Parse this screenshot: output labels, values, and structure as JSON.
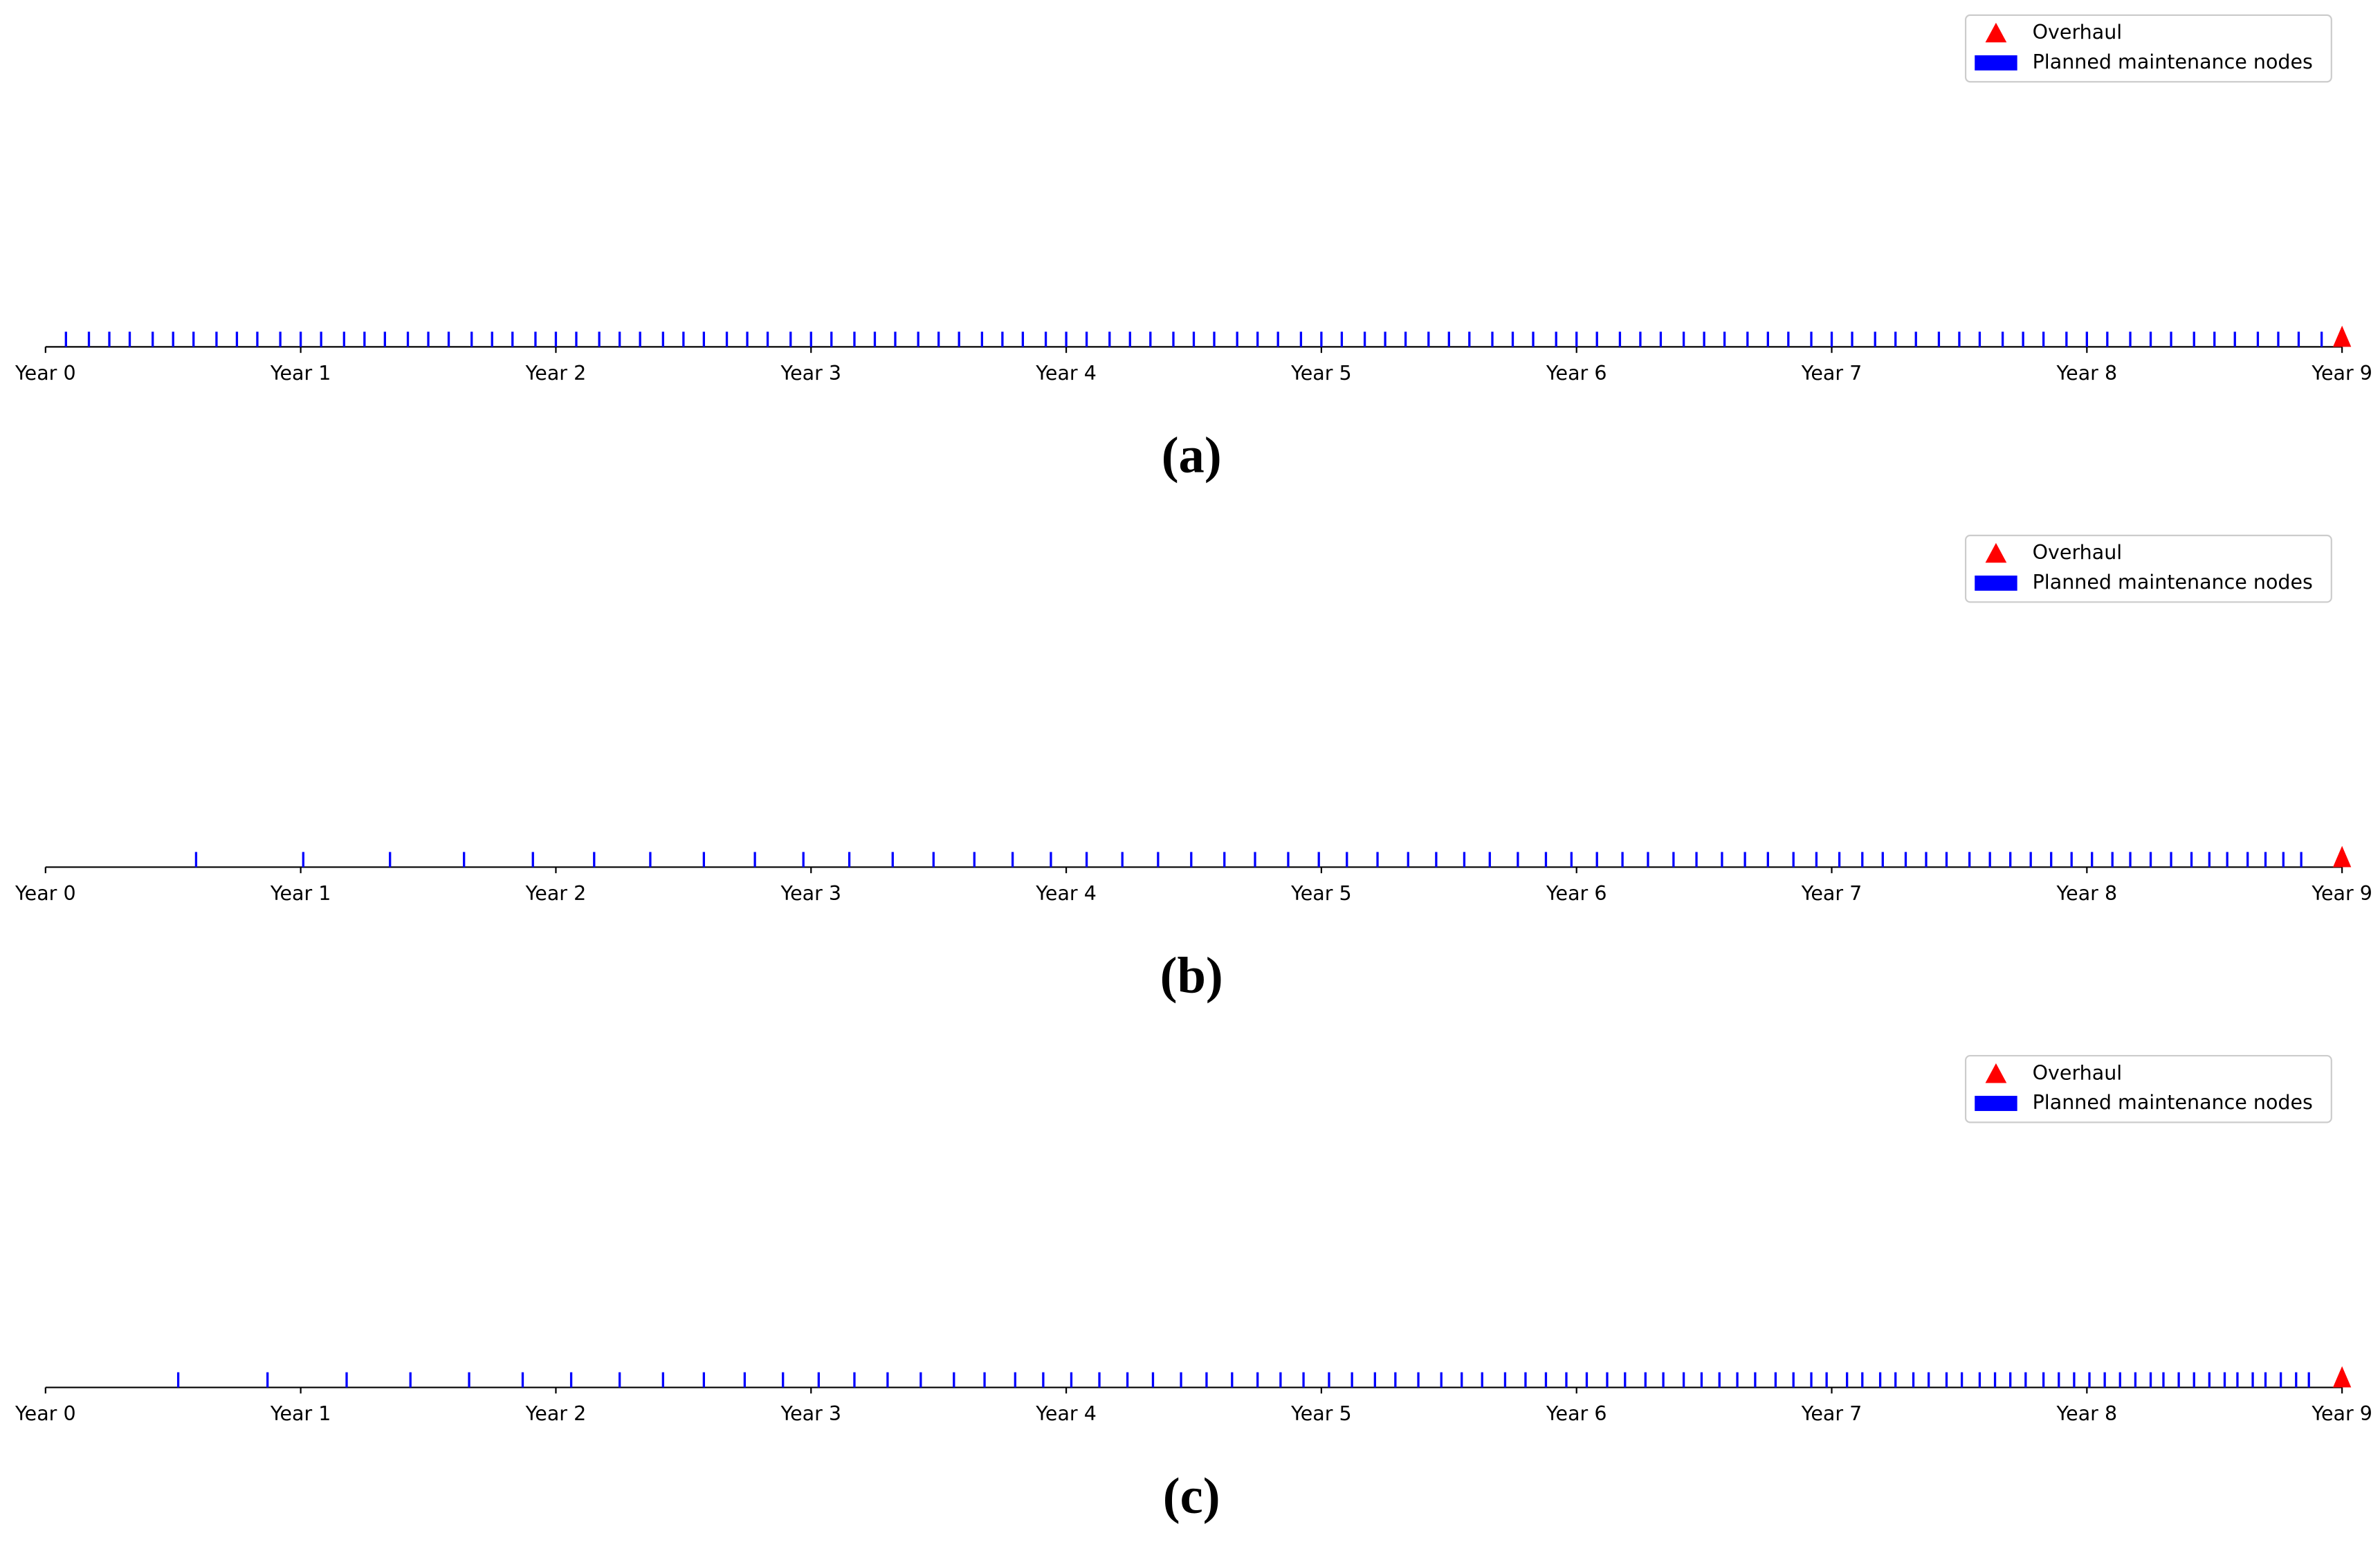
{
  "chart_data": [
    {
      "type": "timeline",
      "caption": "(a)",
      "legend": "upper right",
      "xlim": [
        0,
        9
      ],
      "xticks": [
        {
          "value": 0,
          "label": "Year 0"
        },
        {
          "value": 1,
          "label": "Year 1"
        },
        {
          "value": 2,
          "label": "Year 2"
        },
        {
          "value": 3,
          "label": "Year 3"
        },
        {
          "value": 4,
          "label": "Year 4"
        },
        {
          "value": 5,
          "label": "Year 5"
        },
        {
          "value": 6,
          "label": "Year 6"
        },
        {
          "value": 7,
          "label": "Year 7"
        },
        {
          "value": 8,
          "label": "Year 8"
        },
        {
          "value": 9,
          "label": "Year 9"
        }
      ],
      "series": [
        {
          "name": "Overhaul",
          "color": "#ff0000",
          "marker": "triangle",
          "values": [
            9
          ]
        },
        {
          "name": "Planned maintenance nodes",
          "color": "#0000ff",
          "marker": "bar",
          "values": [
            0.08,
            0.17,
            0.25,
            0.33,
            0.42,
            0.5,
            0.58,
            0.67,
            0.75,
            0.83,
            0.92,
            1,
            1.08,
            1.17,
            1.25,
            1.33,
            1.42,
            1.5,
            1.58,
            1.67,
            1.75,
            1.83,
            1.92,
            2,
            2.08,
            2.17,
            2.25,
            2.33,
            2.42,
            2.5,
            2.58,
            2.67,
            2.75,
            2.83,
            2.92,
            3,
            3.08,
            3.17,
            3.25,
            3.33,
            3.42,
            3.5,
            3.58,
            3.67,
            3.75,
            3.83,
            3.92,
            4,
            4.08,
            4.17,
            4.25,
            4.33,
            4.42,
            4.5,
            4.58,
            4.67,
            4.75,
            4.83,
            4.92,
            5,
            5.08,
            5.17,
            5.25,
            5.33,
            5.42,
            5.5,
            5.58,
            5.67,
            5.75,
            5.83,
            5.92,
            6,
            6.08,
            6.17,
            6.25,
            6.33,
            6.42,
            6.5,
            6.58,
            6.67,
            6.75,
            6.83,
            6.92,
            7,
            7.08,
            7.17,
            7.25,
            7.33,
            7.42,
            7.5,
            7.58,
            7.67,
            7.75,
            7.83,
            7.92,
            8,
            8.08,
            8.17,
            8.25,
            8.33,
            8.42,
            8.5,
            8.58,
            8.67,
            8.75,
            8.83,
            8.92
          ]
        }
      ]
    },
    {
      "type": "timeline",
      "caption": "(b)",
      "legend": "upper right",
      "xlim": [
        0,
        9
      ],
      "xticks": [
        {
          "value": 0,
          "label": "Year 0"
        },
        {
          "value": 1,
          "label": "Year 1"
        },
        {
          "value": 2,
          "label": "Year 2"
        },
        {
          "value": 3,
          "label": "Year 3"
        },
        {
          "value": 4,
          "label": "Year 4"
        },
        {
          "value": 5,
          "label": "Year 5"
        },
        {
          "value": 6,
          "label": "Year 6"
        },
        {
          "value": 7,
          "label": "Year 7"
        },
        {
          "value": 8,
          "label": "Year 8"
        },
        {
          "value": 9,
          "label": "Year 9"
        }
      ],
      "series": [
        {
          "name": "Overhaul",
          "color": "#ff0000",
          "marker": "triangle",
          "values": [
            9
          ]
        },
        {
          "name": "Planned maintenance nodes",
          "color": "#0000ff",
          "marker": "bar",
          "values": [
            0.59,
            1.01,
            1.35,
            1.64,
            1.91,
            2.15,
            2.37,
            2.58,
            2.78,
            2.97,
            3.15,
            3.32,
            3.48,
            3.64,
            3.79,
            3.94,
            4.08,
            4.22,
            4.36,
            4.49,
            4.62,
            4.74,
            4.87,
            4.99,
            5.1,
            5.22,
            5.34,
            5.45,
            5.56,
            5.66,
            5.77,
            5.88,
            5.98,
            6.08,
            6.18,
            6.28,
            6.38,
            6.47,
            6.57,
            6.66,
            6.75,
            6.85,
            6.94,
            7.03,
            7.12,
            7.2,
            7.29,
            7.37,
            7.45,
            7.54,
            7.62,
            7.7,
            7.78,
            7.86,
            7.94,
            8.02,
            8.1,
            8.17,
            8.25,
            8.33,
            8.41,
            8.48,
            8.55,
            8.63,
            8.7,
            8.77,
            8.84
          ]
        }
      ]
    },
    {
      "type": "timeline",
      "caption": "(c)",
      "legend": "upper right",
      "xlim": [
        0,
        9
      ],
      "xticks": [
        {
          "value": 0,
          "label": "Year 0"
        },
        {
          "value": 1,
          "label": "Year 1"
        },
        {
          "value": 2,
          "label": "Year 2"
        },
        {
          "value": 3,
          "label": "Year 3"
        },
        {
          "value": 4,
          "label": "Year 4"
        },
        {
          "value": 5,
          "label": "Year 5"
        },
        {
          "value": 6,
          "label": "Year 6"
        },
        {
          "value": 7,
          "label": "Year 7"
        },
        {
          "value": 8,
          "label": "Year 8"
        },
        {
          "value": 9,
          "label": "Year 9"
        }
      ],
      "series": [
        {
          "name": "Overhaul",
          "color": "#ff0000",
          "marker": "triangle",
          "values": [
            9
          ]
        },
        {
          "name": "Planned maintenance nodes",
          "color": "#0000ff",
          "marker": "bar",
          "values": [
            0.52,
            0.87,
            1.18,
            1.43,
            1.66,
            1.87,
            2.06,
            2.25,
            2.42,
            2.58,
            2.74,
            2.89,
            3.03,
            3.17,
            3.3,
            3.43,
            3.56,
            3.68,
            3.8,
            3.91,
            4.02,
            4.13,
            4.24,
            4.34,
            4.45,
            4.55,
            4.65,
            4.75,
            4.84,
            4.93,
            5.03,
            5.12,
            5.21,
            5.29,
            5.38,
            5.47,
            5.55,
            5.63,
            5.72,
            5.8,
            5.88,
            5.96,
            6.04,
            6.12,
            6.19,
            6.27,
            6.34,
            6.42,
            6.49,
            6.56,
            6.63,
            6.7,
            6.78,
            6.85,
            6.92,
            6.98,
            7.06,
            7.12,
            7.19,
            7.25,
            7.32,
            7.38,
            7.45,
            7.51,
            7.58,
            7.64,
            7.7,
            7.76,
            7.83,
            7.89,
            7.95,
            8.01,
            8.07,
            8.13,
            8.19,
            8.25,
            8.3,
            8.36,
            8.42,
            8.48,
            8.54,
            8.59,
            8.65,
            8.7,
            8.76,
            8.82,
            8.87
          ]
        }
      ]
    }
  ]
}
